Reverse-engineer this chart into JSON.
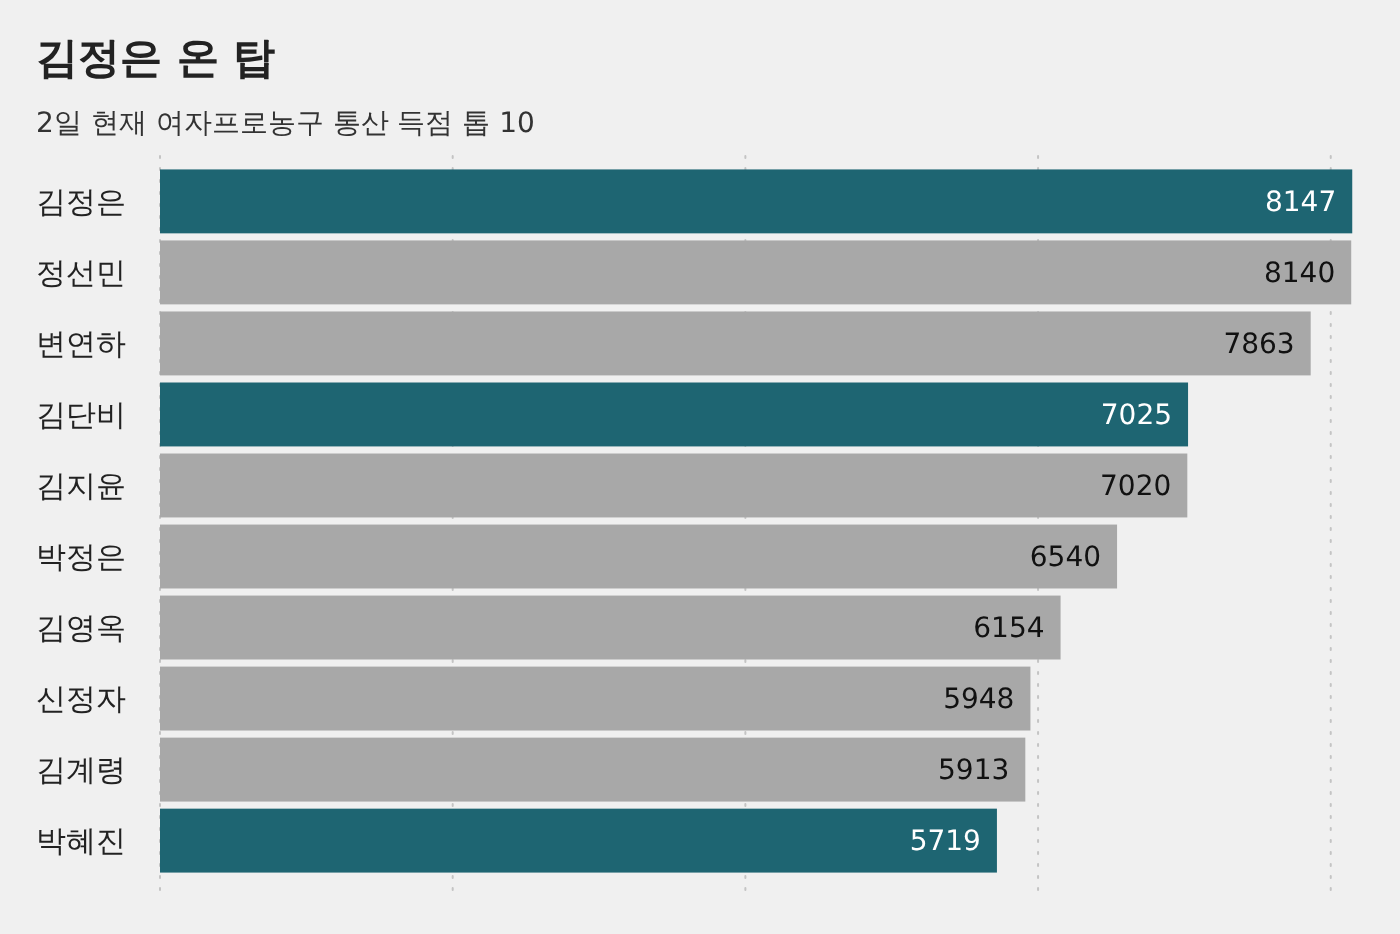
{
  "chart_data": {
    "type": "bar",
    "orientation": "horizontal",
    "title": "김정은 온 탑",
    "subtitle": "2일 현재 여자프로농구 통산 득점 톱 10",
    "categories": [
      "김정은",
      "정선민",
      "변연하",
      "김단비",
      "김지윤",
      "박정은",
      "김영옥",
      "신정자",
      "김계령",
      "박혜진"
    ],
    "values": [
      8147,
      8140,
      7863,
      7025,
      7020,
      6540,
      6154,
      5948,
      5913,
      5719
    ],
    "colors": [
      "#1e6572",
      "#a8a8a8",
      "#a8a8a8",
      "#1e6572",
      "#a8a8a8",
      "#a8a8a8",
      "#a8a8a8",
      "#a8a8a8",
      "#a8a8a8",
      "#1e6572"
    ],
    "xlim": [
      0,
      8200
    ],
    "xticks": [
      {
        "value": 0,
        "label": null
      },
      {
        "value": 2000,
        "label": null
      },
      {
        "value": 4000,
        "label": null
      },
      {
        "value": 6000,
        "label": null
      },
      {
        "value": 8000,
        "label": null
      }
    ],
    "tick_labels": "y",
    "grid": "x",
    "data_labels": true
  }
}
